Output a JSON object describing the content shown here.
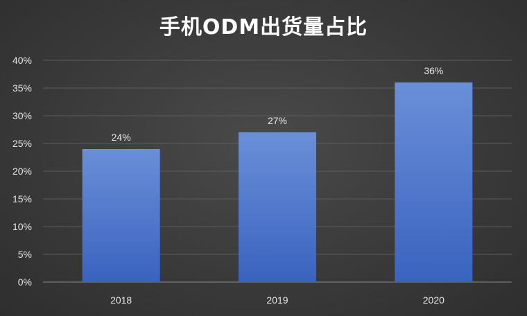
{
  "chart_data": {
    "type": "bar",
    "title": "手机ODM出货量占比",
    "categories": [
      "2018",
      "2019",
      "2020"
    ],
    "values": [
      24,
      27,
      36
    ],
    "data_labels": [
      "24%",
      "27%",
      "36%"
    ],
    "ylim": [
      0,
      40
    ],
    "yticks": [
      0,
      5,
      10,
      15,
      20,
      25,
      30,
      35,
      40
    ],
    "ytick_labels": [
      "0%",
      "5%",
      "10%",
      "15%",
      "20%",
      "25%",
      "30%",
      "35%",
      "40%"
    ],
    "xlabel": "",
    "ylabel": "",
    "grid": true,
    "legend": "none",
    "bar_color": "#4472c4",
    "background_color": "#3a3a3a"
  }
}
